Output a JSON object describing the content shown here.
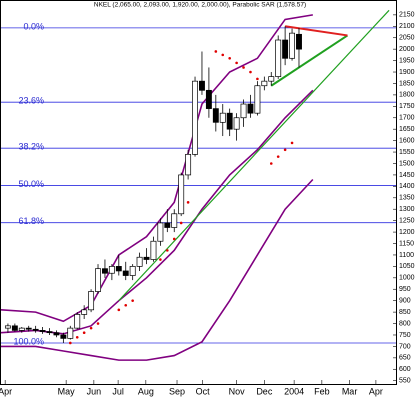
{
  "chart_data": {
    "type": "candlestick",
    "title": "NKEL (2,065.00, 2,093.00, 1,920.00, 2,000.00), Parabolic SAR (1,578.57)",
    "xlim": [
      0,
      57
    ],
    "xticks": [
      {
        "value": 0.6,
        "label": "Apr"
      },
      {
        "value": 9.4,
        "label": "May"
      },
      {
        "value": 13.4,
        "label": "Jun"
      },
      {
        "value": 16.9,
        "label": "Jul"
      },
      {
        "value": 20.9,
        "label": "Aug"
      },
      {
        "value": 25.4,
        "label": "Sep"
      },
      {
        "value": 29.1,
        "label": "Oct"
      },
      {
        "value": 34,
        "label": "Nov"
      },
      {
        "value": 38,
        "label": "Dec"
      },
      {
        "value": 42.3,
        "label": "2004"
      },
      {
        "value": 46.3,
        "label": "Feb"
      },
      {
        "value": 50.3,
        "label": "Mar"
      },
      {
        "value": 54.1,
        "label": "Apr"
      }
    ],
    "ylim": [
      540,
      2180
    ],
    "yticks": [
      550,
      600,
      650,
      700,
      750,
      800,
      850,
      900,
      950,
      1000,
      1050,
      1100,
      1150,
      1200,
      1250,
      1300,
      1350,
      1400,
      1450,
      1500,
      1550,
      1600,
      1650,
      1700,
      1750,
      1800,
      1850,
      1900,
      1950,
      2000,
      2050,
      2100,
      2150
    ],
    "candles": {
      "up_color": "#ffffff",
      "down_color": "#000000",
      "x": [
        1,
        2,
        3,
        4,
        5,
        6,
        7,
        8,
        9,
        10,
        11,
        12,
        13,
        14,
        15,
        16,
        17,
        18,
        19,
        20,
        21,
        22,
        23,
        24,
        25,
        26,
        27,
        28,
        29,
        30,
        31,
        32,
        33,
        34,
        35,
        36,
        37,
        38,
        39,
        40,
        41,
        42,
        43
      ],
      "open": [
        780,
        790,
        770,
        780,
        775,
        770,
        765,
        760,
        750,
        735,
        780,
        840,
        860,
        940,
        1040,
        1020,
        1050,
        1030,
        1010,
        1050,
        1090,
        1080,
        1160,
        1240,
        1220,
        1280,
        1450,
        1540,
        1860,
        1820,
        1740,
        1680,
        1720,
        1650,
        1700,
        1760,
        1720,
        1840,
        1860,
        1880,
        2040,
        1960,
        2065
      ],
      "high": [
        800,
        800,
        785,
        790,
        790,
        785,
        780,
        770,
        760,
        790,
        850,
        880,
        950,
        1060,
        1080,
        1060,
        1100,
        1070,
        1060,
        1110,
        1130,
        1180,
        1260,
        1300,
        1300,
        1460,
        1560,
        1880,
        1990,
        1920,
        1800,
        1760,
        1740,
        1720,
        1780,
        1800,
        1860,
        1880,
        1900,
        2060,
        2100,
        2090,
        2093
      ],
      "low": [
        760,
        765,
        760,
        765,
        760,
        755,
        750,
        740,
        715,
        730,
        775,
        820,
        850,
        930,
        1000,
        990,
        1010,
        990,
        990,
        1030,
        1060,
        1070,
        1140,
        1200,
        1200,
        1270,
        1430,
        1530,
        1800,
        1700,
        1640,
        1620,
        1620,
        1600,
        1660,
        1700,
        1710,
        1820,
        1840,
        1870,
        1930,
        1950,
        1920
      ],
      "close": [
        790,
        770,
        780,
        775,
        770,
        765,
        760,
        750,
        735,
        780,
        840,
        860,
        940,
        1040,
        1020,
        1050,
        1030,
        1010,
        1050,
        1090,
        1080,
        1160,
        1240,
        1220,
        1280,
        1450,
        1540,
        1860,
        1820,
        1740,
        1680,
        1720,
        1650,
        1700,
        1760,
        1720,
        1840,
        1860,
        1880,
        2040,
        1960,
        2070,
        2000
      ]
    },
    "bands": {
      "color": "#800080",
      "x": [
        0,
        5,
        9,
        13,
        17,
        21,
        25,
        29,
        33,
        37,
        41,
        45
      ],
      "series": [
        {
          "values": [
            860,
            850,
            810,
            880,
            1100,
            1180,
            1330,
            1760,
            1900,
            1960,
            2130,
            2150
          ]
        },
        {
          "values": [
            760,
            770,
            755,
            790,
            900,
            1000,
            1120,
            1300,
            1450,
            1560,
            1700,
            1820
          ]
        },
        {
          "values": [
            700,
            700,
            680,
            660,
            640,
            640,
            660,
            720,
            900,
            1100,
            1300,
            1430
          ]
        }
      ]
    },
    "sar": {
      "color": "#e00000",
      "x": [
        10,
        11,
        12,
        13,
        14,
        17,
        18,
        19,
        23,
        24,
        25,
        26,
        27,
        31,
        32,
        33,
        34,
        35,
        36,
        37,
        39,
        40,
        41,
        42
      ],
      "values": [
        715,
        740,
        760,
        780,
        800,
        860,
        880,
        900,
        1080,
        1120,
        1170,
        1240,
        1330,
        1990,
        1975,
        1960,
        1940,
        1920,
        1900,
        1870,
        1500,
        1530,
        1560,
        1590
      ]
    },
    "fib_levels": {
      "color": "#3030e0",
      "labels": [
        "0.0%",
        "23.6%",
        "38.2%",
        "50.0%",
        "61.8%",
        "100.0%"
      ],
      "values": [
        2093,
        1768,
        1567,
        1404,
        1241,
        715
      ]
    },
    "trendlines": [
      {
        "color": "#20a020",
        "x": [
          17,
          56
        ],
        "values": [
          900,
          2170
        ]
      },
      {
        "color": "#20a020",
        "x": [
          39,
          50
        ],
        "values": [
          1840,
          2060
        ]
      },
      {
        "color": "#e02020",
        "x": [
          41,
          50
        ],
        "values": [
          2100,
          2060
        ]
      }
    ]
  }
}
